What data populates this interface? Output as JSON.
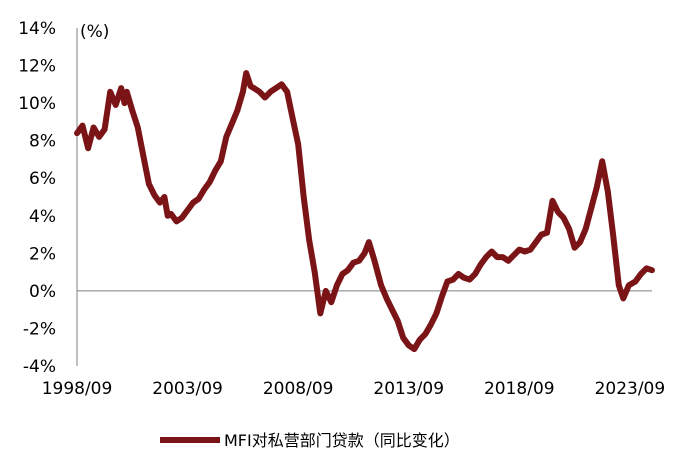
{
  "chart_data": {
    "type": "line",
    "unit_label": "(%)",
    "y_ticks": [
      "14%",
      "12%",
      "10%",
      "8%",
      "6%",
      "4%",
      "2%",
      "0%",
      "-2%",
      "-4%"
    ],
    "y_tick_values": [
      14,
      12,
      10,
      8,
      6,
      4,
      2,
      0,
      -2,
      -4
    ],
    "ylim": [
      -4,
      14
    ],
    "x_ticks": [
      "1998/09",
      "2003/09",
      "2008/09",
      "2013/09",
      "2018/09",
      "2023/09"
    ],
    "x_tick_values": [
      1998.75,
      2003.75,
      2008.75,
      2013.75,
      2018.75,
      2023.75
    ],
    "xlim": [
      1998.75,
      2024.75
    ],
    "grid": false,
    "legend_position": "bottom",
    "series": [
      {
        "name": "MFI对私营部门贷款（同比变化）",
        "color": "#7b1416",
        "points": [
          [
            1998.75,
            8.4
          ],
          [
            1999.0,
            8.8
          ],
          [
            1999.25,
            7.6
          ],
          [
            1999.5,
            8.7
          ],
          [
            1999.75,
            8.2
          ],
          [
            2000.0,
            8.6
          ],
          [
            2000.25,
            10.6
          ],
          [
            2000.5,
            9.9
          ],
          [
            2000.75,
            10.8
          ],
          [
            2000.9,
            10.0
          ],
          [
            2001.0,
            10.6
          ],
          [
            2001.25,
            9.6
          ],
          [
            2001.5,
            8.7
          ],
          [
            2001.75,
            7.2
          ],
          [
            2002.0,
            5.7
          ],
          [
            2002.25,
            5.1
          ],
          [
            2002.5,
            4.7
          ],
          [
            2002.7,
            5.0
          ],
          [
            2002.85,
            4.0
          ],
          [
            2003.0,
            4.1
          ],
          [
            2003.25,
            3.7
          ],
          [
            2003.5,
            3.9
          ],
          [
            2003.75,
            4.3
          ],
          [
            2004.0,
            4.7
          ],
          [
            2004.25,
            4.9
          ],
          [
            2004.5,
            5.4
          ],
          [
            2004.75,
            5.8
          ],
          [
            2005.0,
            6.4
          ],
          [
            2005.25,
            6.9
          ],
          [
            2005.5,
            8.2
          ],
          [
            2005.75,
            8.9
          ],
          [
            2006.0,
            9.6
          ],
          [
            2006.25,
            10.6
          ],
          [
            2006.4,
            11.6
          ],
          [
            2006.6,
            10.9
          ],
          [
            2006.75,
            10.8
          ],
          [
            2007.0,
            10.6
          ],
          [
            2007.25,
            10.3
          ],
          [
            2007.5,
            10.6
          ],
          [
            2007.75,
            10.8
          ],
          [
            2008.0,
            11.0
          ],
          [
            2008.25,
            10.6
          ],
          [
            2008.5,
            9.2
          ],
          [
            2008.75,
            7.8
          ],
          [
            2009.0,
            5.0
          ],
          [
            2009.25,
            2.7
          ],
          [
            2009.5,
            1.0
          ],
          [
            2009.75,
            -1.2
          ],
          [
            2010.0,
            0.0
          ],
          [
            2010.25,
            -0.6
          ],
          [
            2010.5,
            0.3
          ],
          [
            2010.75,
            0.9
          ],
          [
            2011.0,
            1.1
          ],
          [
            2011.25,
            1.5
          ],
          [
            2011.5,
            1.6
          ],
          [
            2011.75,
            2.0
          ],
          [
            2011.95,
            2.6
          ],
          [
            2012.2,
            1.6
          ],
          [
            2012.5,
            0.3
          ],
          [
            2012.75,
            -0.4
          ],
          [
            2013.0,
            -1.0
          ],
          [
            2013.25,
            -1.6
          ],
          [
            2013.5,
            -2.5
          ],
          [
            2013.75,
            -2.9
          ],
          [
            2014.0,
            -3.1
          ],
          [
            2014.25,
            -2.6
          ],
          [
            2014.5,
            -2.3
          ],
          [
            2014.75,
            -1.8
          ],
          [
            2015.0,
            -1.2
          ],
          [
            2015.25,
            -0.3
          ],
          [
            2015.5,
            0.5
          ],
          [
            2015.75,
            0.6
          ],
          [
            2016.0,
            0.9
          ],
          [
            2016.25,
            0.7
          ],
          [
            2016.5,
            0.6
          ],
          [
            2016.75,
            0.9
          ],
          [
            2017.0,
            1.4
          ],
          [
            2017.25,
            1.8
          ],
          [
            2017.5,
            2.1
          ],
          [
            2017.75,
            1.8
          ],
          [
            2018.0,
            1.8
          ],
          [
            2018.25,
            1.6
          ],
          [
            2018.5,
            1.9
          ],
          [
            2018.75,
            2.2
          ],
          [
            2019.0,
            2.1
          ],
          [
            2019.25,
            2.2
          ],
          [
            2019.5,
            2.6
          ],
          [
            2019.75,
            3.0
          ],
          [
            2020.0,
            3.1
          ],
          [
            2020.25,
            4.8
          ],
          [
            2020.5,
            4.2
          ],
          [
            2020.75,
            3.9
          ],
          [
            2021.0,
            3.3
          ],
          [
            2021.25,
            2.3
          ],
          [
            2021.5,
            2.6
          ],
          [
            2021.75,
            3.3
          ],
          [
            2022.0,
            4.4
          ],
          [
            2022.25,
            5.5
          ],
          [
            2022.5,
            6.9
          ],
          [
            2022.75,
            5.3
          ],
          [
            2023.0,
            2.9
          ],
          [
            2023.25,
            0.3
          ],
          [
            2023.45,
            -0.4
          ],
          [
            2023.7,
            0.3
          ],
          [
            2024.0,
            0.5
          ],
          [
            2024.25,
            0.9
          ],
          [
            2024.5,
            1.2
          ],
          [
            2024.75,
            1.1
          ]
        ]
      }
    ]
  }
}
